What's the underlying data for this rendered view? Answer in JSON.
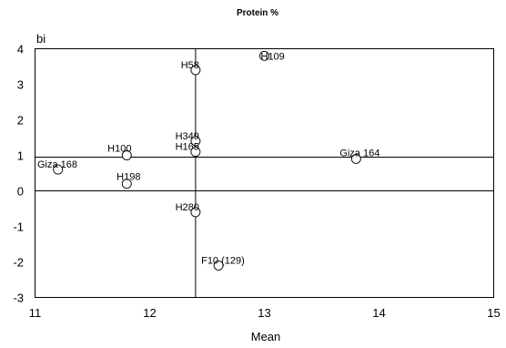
{
  "chart_data": {
    "type": "scatter",
    "title": "Protein %",
    "xlabel": "Mean",
    "ylabel": "bi",
    "xlim": [
      11,
      15
    ],
    "ylim": [
      -3,
      4
    ],
    "xticks": [
      11,
      12,
      13,
      14,
      15
    ],
    "yticks": [
      -3,
      -2,
      -1,
      0,
      1,
      2,
      3,
      4
    ],
    "grid": false,
    "reference_lines": {
      "x": 12.4,
      "y": 0.95
    },
    "points": [
      {
        "label": "H109",
        "x": 13.0,
        "y": 3.8
      },
      {
        "label": "H58",
        "x": 12.4,
        "y": 3.4
      },
      {
        "label": "H349",
        "x": 12.4,
        "y": 1.4
      },
      {
        "label": "H165",
        "x": 12.4,
        "y": 1.1
      },
      {
        "label": "H100",
        "x": 11.8,
        "y": 1.0
      },
      {
        "label": "Giza 164",
        "x": 13.8,
        "y": 0.9
      },
      {
        "label": "Giza 168",
        "x": 11.2,
        "y": 0.6
      },
      {
        "label": "H198",
        "x": 11.8,
        "y": 0.2
      },
      {
        "label": "H280",
        "x": 12.4,
        "y": -0.6
      },
      {
        "label": "F10 (129)",
        "x": 12.6,
        "y": -2.1
      }
    ]
  }
}
